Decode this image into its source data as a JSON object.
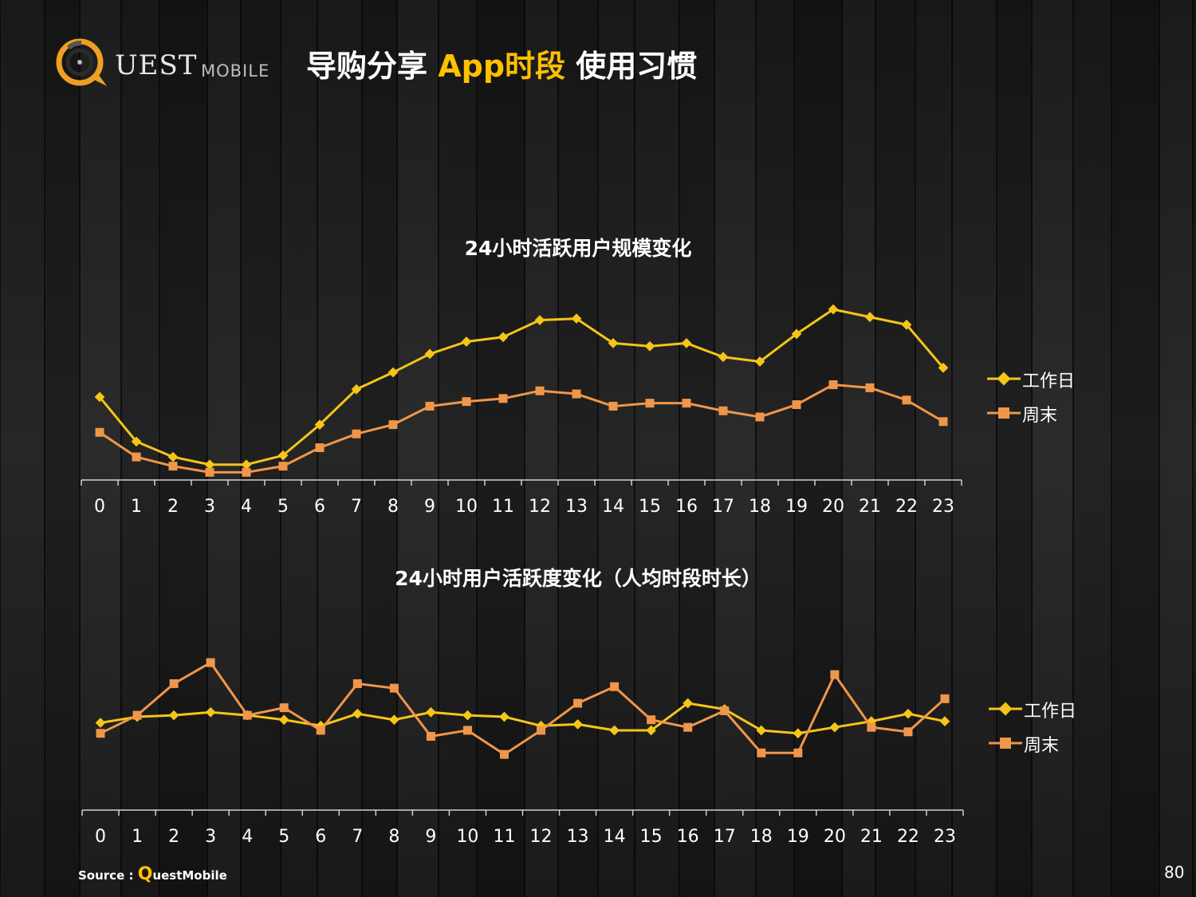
{
  "header": {
    "logo_quest": "UEST",
    "logo_mobile": "MOBILE",
    "title_part1": "导购分享",
    "title_accent": "App时段",
    "title_part2": "使用习惯"
  },
  "colors": {
    "workday": "#f5c518",
    "weekend": "#f0964a",
    "accent": "#ffc000",
    "logo_ring": "#f0a020"
  },
  "chart_data": [
    {
      "type": "line",
      "title": "24小时活跃用户规模变化",
      "categories": [
        "0",
        "1",
        "2",
        "3",
        "4",
        "5",
        "6",
        "7",
        "8",
        "9",
        "10",
        "11",
        "12",
        "13",
        "14",
        "15",
        "16",
        "17",
        "18",
        "19",
        "20",
        "21",
        "22",
        "23"
      ],
      "series": [
        {
          "name": "工作日",
          "values": [
            54,
            25,
            15,
            10,
            10,
            16,
            36,
            59,
            70,
            82,
            90,
            93,
            104,
            105,
            89,
            87,
            89,
            80,
            77,
            95,
            111,
            106,
            101,
            73
          ]
        },
        {
          "name": "周末",
          "values": [
            31,
            15,
            9,
            5,
            5,
            9,
            21,
            30,
            36,
            48,
            51,
            53,
            58,
            56,
            48,
            50,
            50,
            45,
            41,
            49,
            62,
            60,
            52,
            38
          ]
        }
      ],
      "legend": "right",
      "grid": false
    },
    {
      "type": "line",
      "title": "24小时用户活跃度变化（人均时段时长）",
      "categories": [
        "0",
        "1",
        "2",
        "3",
        "4",
        "5",
        "6",
        "7",
        "8",
        "9",
        "10",
        "11",
        "12",
        "13",
        "14",
        "15",
        "16",
        "17",
        "18",
        "19",
        "20",
        "21",
        "22",
        "23"
      ],
      "series": [
        {
          "name": "工作日",
          "values": [
            58,
            62,
            63,
            65,
            63,
            60,
            56,
            64,
            60,
            65,
            63,
            62,
            56,
            57,
            53,
            53,
            71,
            67,
            53,
            51,
            55,
            59,
            64,
            59
          ]
        },
        {
          "name": "周末",
          "values": [
            51,
            63,
            84,
            98,
            63,
            68,
            53,
            84,
            81,
            49,
            53,
            37,
            53,
            71,
            82,
            60,
            55,
            66,
            38,
            38,
            90,
            55,
            52,
            74
          ]
        }
      ],
      "legend": "right",
      "grid": false
    }
  ],
  "legend_labels": {
    "workday": "工作日",
    "weekend": "周末"
  },
  "footer": {
    "source_prefix": "Source :",
    "source_q": "Q",
    "source_rest": "uestMobile",
    "page_number": "80"
  }
}
